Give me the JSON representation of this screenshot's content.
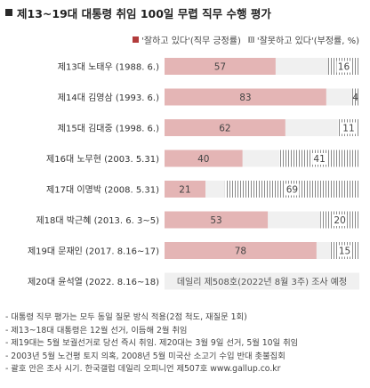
{
  "title": "제13~19대 대통령 취임 100일 무렵 직무 수행 평가",
  "legend": {
    "positive": "'잘하고 있다'(직무 긍정률)",
    "negative": "'잘못하고 있다'(부정률, %)"
  },
  "colors": {
    "positive": "#e4b5b5",
    "negative_stripe": "#8a8a8a",
    "bar_bg": "#f0f0f0"
  },
  "chart_data": {
    "type": "bar",
    "orientation": "horizontal",
    "stacked": true,
    "title": "제13~19대 대통령 취임 100일 무렵 직무 수행 평가",
    "categories": [
      "제13대 노태우 (1988. 6.)",
      "제14대 김영삼 (1993. 6.)",
      "제15대 김대중 (1998. 6.)",
      "제16대 노무현 (2003. 5.31)",
      "제17대 이명박 (2008. 5.31)",
      "제18대 박근혜 (2013. 6. 3~5)",
      "제19대 문재인 (2017. 8.16~17)",
      "제20대 윤석열 (2022. 8.16~18)"
    ],
    "series": [
      {
        "name": "'잘하고 있다'(직무 긍정률)",
        "values": [
          57,
          83,
          62,
          40,
          21,
          53,
          78,
          null
        ]
      },
      {
        "name": "'잘못하고 있다'(부정률, %)",
        "values": [
          16,
          4,
          11,
          41,
          69,
          20,
          15,
          null
        ]
      }
    ],
    "xlim": [
      0,
      100
    ],
    "annotations": [
      "데일리 제508호(2022년 8월 3주) 조사 예정"
    ]
  },
  "footnotes": [
    "- 대통령 직무 평가는 모두 동일 질문 방식 적용(2점 척도, 재질문 1회)",
    "- 제13~18대 대통령은 12월 선거, 이듬해 2월 취임",
    "- 제19대는 5월 보궐선거로 당선 즉시 취임. 제20대는 3월 9일 선거, 5월 10일 취임",
    "- 2003년 5월 노건평 토지 의혹, 2008년 5월 미국산 소고기 수입 반대 촛불집회",
    "- 괄호 안은 조사 시기. 한국갤럽 데일리 오피니언 제507호 www.gallup.co.kr"
  ]
}
